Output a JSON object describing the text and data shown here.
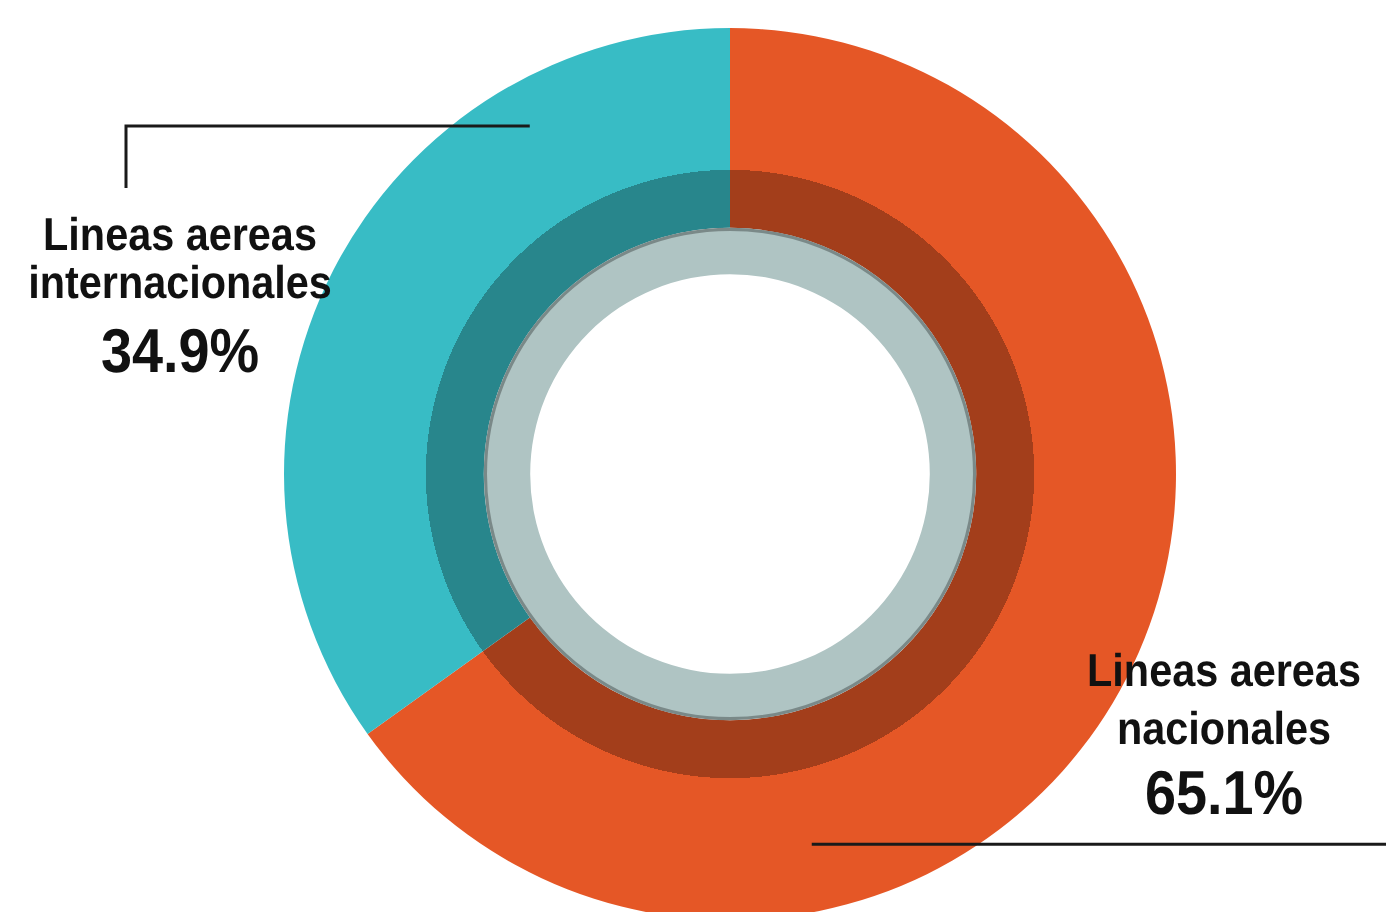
{
  "chart_data": {
    "type": "donut",
    "categories": [
      "Lineas aereas nacionales",
      "Lineas aereas internacionales"
    ],
    "values": [
      65.1,
      34.9
    ],
    "colors": [
      "#e55726",
      "#38bcc5"
    ],
    "value_labels": [
      "65.1%",
      "34.9%"
    ]
  }
}
